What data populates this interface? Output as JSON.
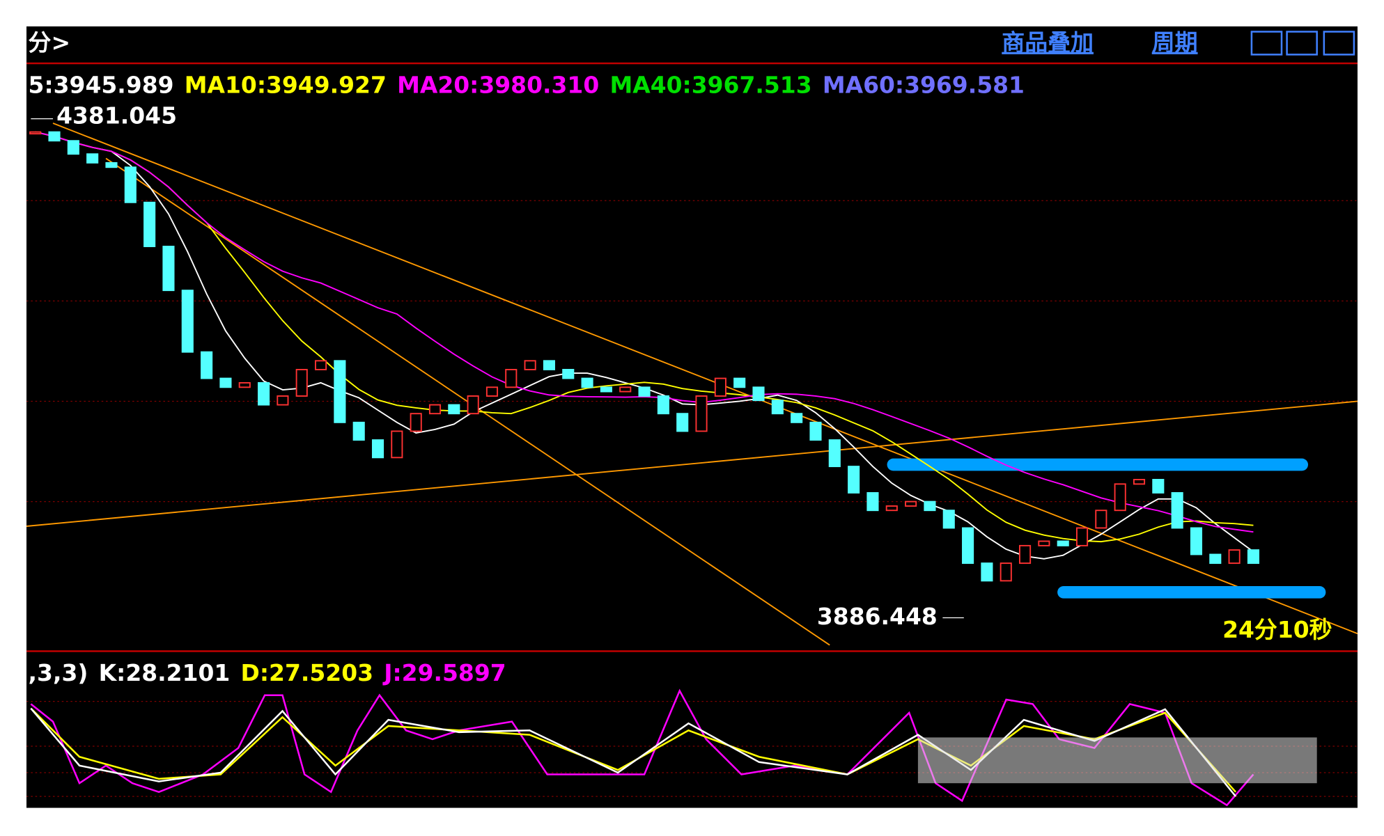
{
  "toolbar": {
    "left": "分>",
    "overlay": "商品叠加",
    "period": "周期"
  },
  "ma_legend": [
    "5:3945.989",
    "MA10:3949.927",
    "MA20:3980.310",
    "MA40:3967.513",
    "MA60:3969.581"
  ],
  "ma_colors": [
    "#ffffff",
    "#ffff00",
    "#ff00ff",
    "#00e000",
    "#7070ff"
  ],
  "price_chart": {
    "high_label": "4381.045",
    "high": 4381.045,
    "low_label": "3886.448",
    "low": 3886.448,
    "timer": "24分10秒",
    "closes": [
      4376.6,
      4367.7,
      4354.3,
      4345.4,
      4340.9,
      4305.3,
      4260.7,
      4216.2,
      4153.8,
      4127.1,
      4118.1,
      4122.6,
      4100.3,
      4109.2,
      4136.0,
      4144.9,
      4082.5,
      4064.7,
      4046.9,
      4073.6,
      4091.4,
      4100.3,
      4091.4,
      4109.2,
      4118.1,
      4136.0,
      4144.9,
      4136.0,
      4127.1,
      4118.1,
      4113.7,
      4118.1,
      4109.2,
      4091.4,
      4073.6,
      4109.2,
      4127.1,
      4118.1,
      4104.8,
      4091.4,
      4082.5,
      4064.7,
      4037.9,
      4011.2,
      3993.4,
      3997.8,
      4002.3,
      3993.4,
      3975.6,
      3939.9,
      3922.1,
      3939.9,
      3957.7,
      3962.2,
      3957.7,
      3975.6,
      3993.4,
      4020.1,
      4024.6,
      4011.2,
      3975.6,
      3948.8,
      3939.9,
      3953.3,
      3939.9
    ]
  },
  "kdj_legend": [
    ",3,3)",
    "K:28.2101",
    "D:27.5203",
    "J:29.5897"
  ],
  "kdj_colors": [
    "#ffffff",
    "#ffffff",
    "#ffff00",
    "#ff00ff"
  ]
}
